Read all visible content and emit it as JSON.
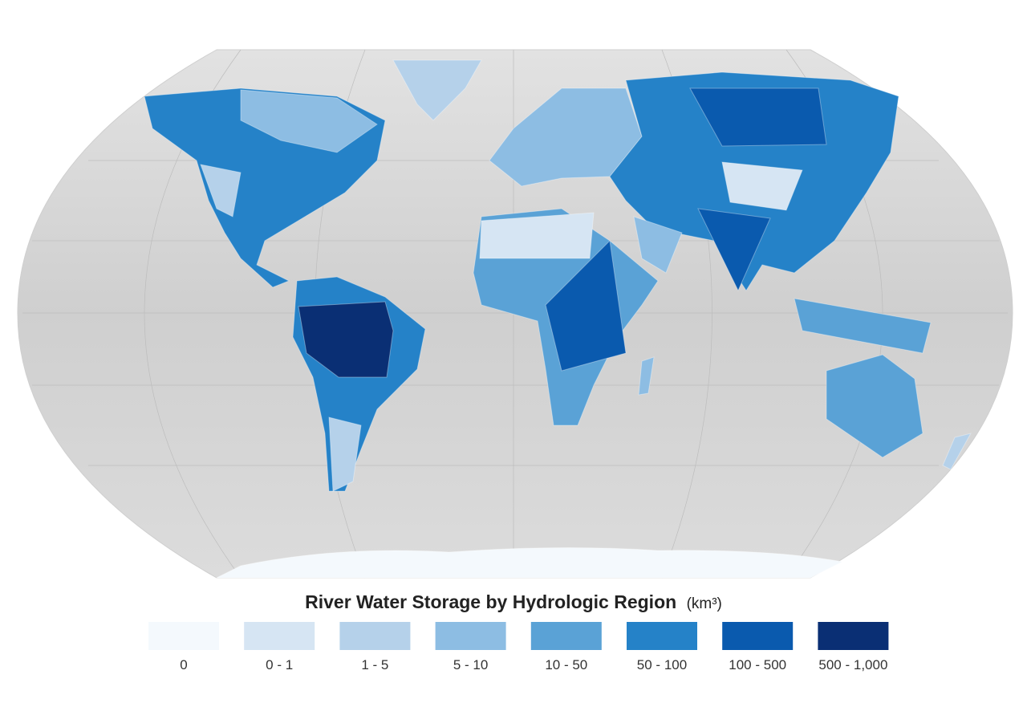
{
  "legend": {
    "title": "River Water Storage by Hydrologic Region",
    "unit": "(km³)",
    "items": [
      {
        "label": "0",
        "color": "#f4f9fd"
      },
      {
        "label": "0 - 1",
        "color": "#d6e5f3"
      },
      {
        "label": "1 - 5",
        "color": "#b5d1ea"
      },
      {
        "label": "5 - 10",
        "color": "#8dbde3"
      },
      {
        "label": "10 - 50",
        "color": "#5aa2d6"
      },
      {
        "label": "50 - 100",
        "color": "#2582c8"
      },
      {
        "label": "100 - 500",
        "color": "#0a5aae"
      },
      {
        "label": "500 - 1,000",
        "color": "#0a2f74"
      }
    ]
  }
}
